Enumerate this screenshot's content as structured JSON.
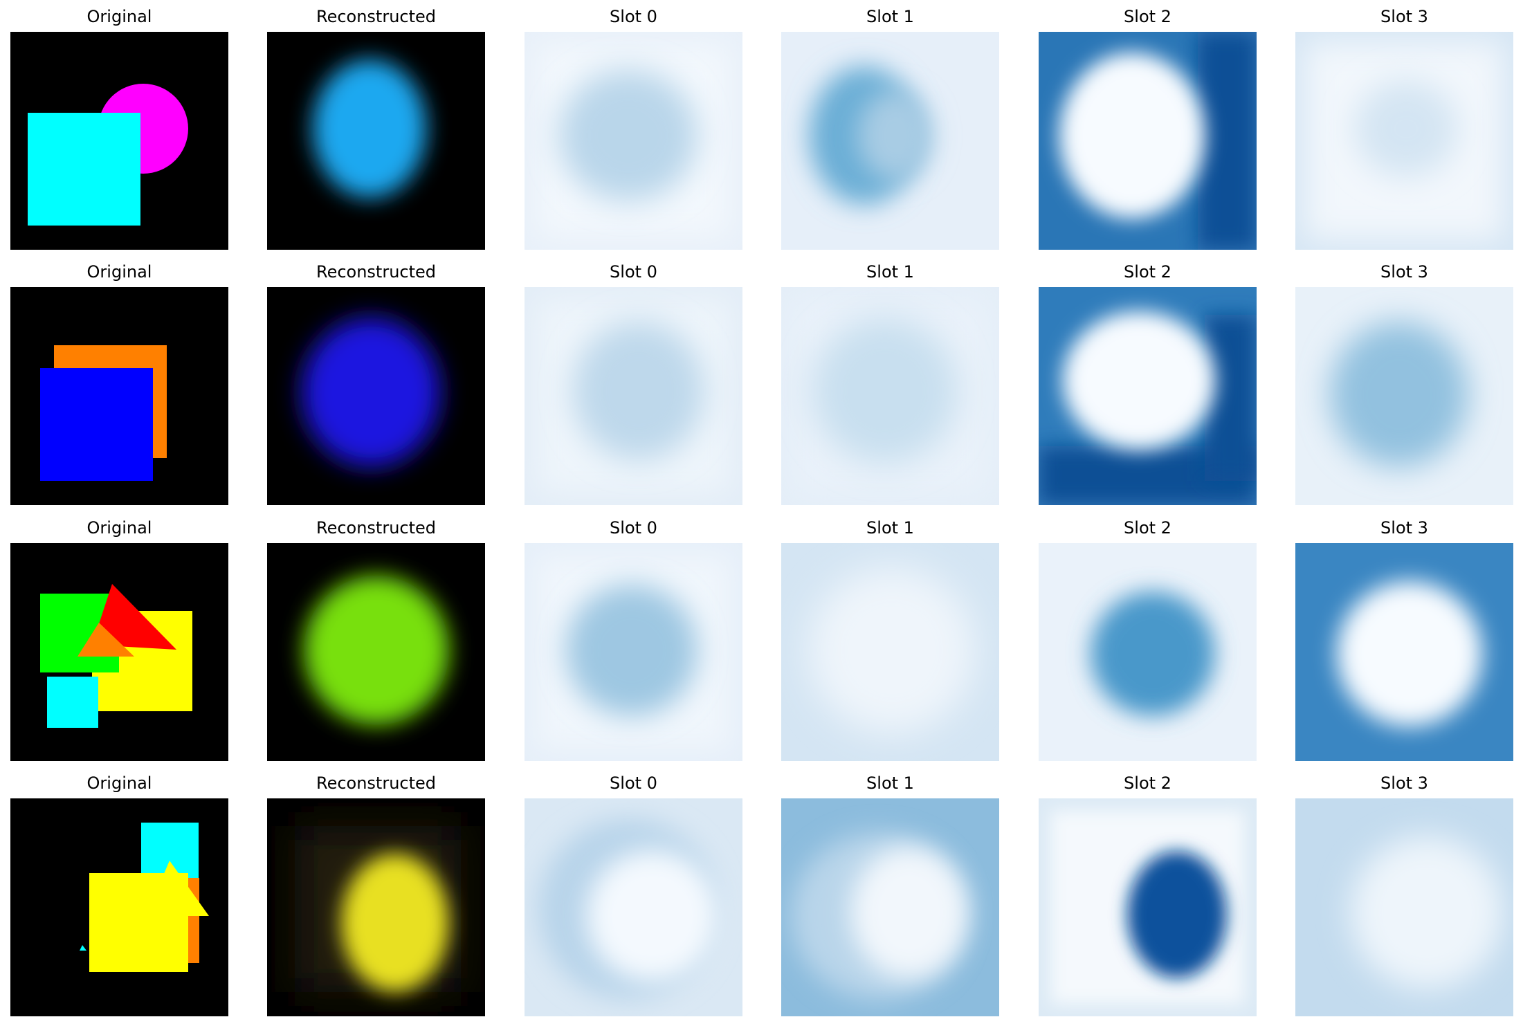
{
  "figure": {
    "rows": [
      {
        "panels": [
          {
            "title": "Original",
            "kind": "original"
          },
          {
            "title": "Reconstructed",
            "kind": "recon"
          },
          {
            "title": "Slot 0",
            "kind": "mask"
          },
          {
            "title": "Slot 1",
            "kind": "mask"
          },
          {
            "title": "Slot 2",
            "kind": "mask"
          },
          {
            "title": "Slot 3",
            "kind": "mask"
          }
        ]
      },
      {
        "panels": [
          {
            "title": "Original",
            "kind": "original"
          },
          {
            "title": "Reconstructed",
            "kind": "recon"
          },
          {
            "title": "Slot 0",
            "kind": "mask"
          },
          {
            "title": "Slot 1",
            "kind": "mask"
          },
          {
            "title": "Slot 2",
            "kind": "mask"
          },
          {
            "title": "Slot 3",
            "kind": "mask"
          }
        ]
      },
      {
        "panels": [
          {
            "title": "Original",
            "kind": "original"
          },
          {
            "title": "Reconstructed",
            "kind": "recon"
          },
          {
            "title": "Slot 0",
            "kind": "mask"
          },
          {
            "title": "Slot 1",
            "kind": "mask"
          },
          {
            "title": "Slot 2",
            "kind": "mask"
          },
          {
            "title": "Slot 3",
            "kind": "mask"
          }
        ]
      },
      {
        "panels": [
          {
            "title": "Original",
            "kind": "original"
          },
          {
            "title": "Reconstructed",
            "kind": "recon"
          },
          {
            "title": "Slot 0",
            "kind": "mask"
          },
          {
            "title": "Slot 1",
            "kind": "mask"
          },
          {
            "title": "Slot 2",
            "kind": "mask"
          },
          {
            "title": "Slot 3",
            "kind": "mask"
          }
        ]
      }
    ]
  },
  "colors": {
    "background": "#000000",
    "cyan": "#00ffff",
    "magenta": "#ff00ff",
    "orange": "#ff8000",
    "blue": "#0000ff",
    "green": "#00ff00",
    "yellow": "#ffff00",
    "red": "#ff0000",
    "recon_row1": "#1ea8f0",
    "recon_row2": "#1a12e0",
    "recon_row3": "#78e010",
    "recon_row4": "#e8e020",
    "mask_light": "#f2f7fd",
    "mask_dark": "#08519c"
  }
}
